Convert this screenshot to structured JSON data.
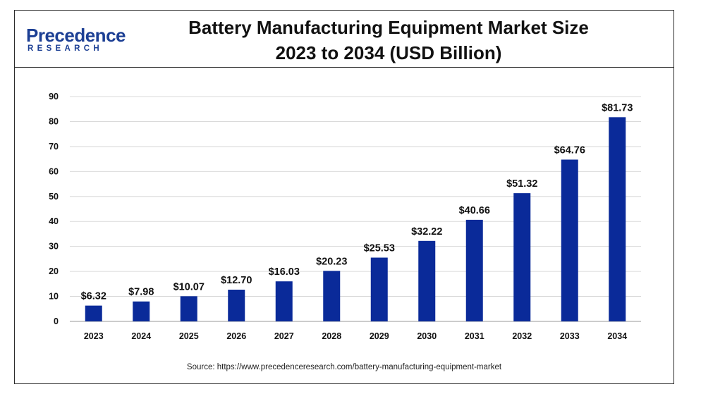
{
  "logo": {
    "main": "Precedence",
    "sub": "RESEARCH"
  },
  "title_line1": "Battery Manufacturing Equipment Market Size",
  "title_line2": "2023 to 2034 (USD Billion)",
  "source": "Source: https://www.precedenceresearch.com/battery-manufacturing-equipment-market",
  "colors": {
    "bar": "#0a2a99",
    "grid": "#d9d9d9",
    "frame": "#2b2b2b"
  },
  "chart_data": {
    "type": "bar",
    "title": "Battery Manufacturing Equipment Market Size 2023 to 2034 (USD Billion)",
    "xlabel": "",
    "ylabel": "",
    "categories": [
      "2023",
      "2024",
      "2025",
      "2026",
      "2027",
      "2028",
      "2029",
      "2030",
      "2031",
      "2032",
      "2033",
      "2034"
    ],
    "values": [
      6.32,
      7.98,
      10.07,
      12.7,
      16.03,
      20.23,
      25.53,
      32.22,
      40.66,
      51.32,
      64.76,
      81.73
    ],
    "data_labels": [
      "$6.32",
      "$7.98",
      "$10.07",
      "$12.70",
      "$16.03",
      "$20.23",
      "$25.53",
      "$32.22",
      "$40.66",
      "$51.32",
      "$64.76",
      "$81.73"
    ],
    "ylim": [
      0,
      90
    ],
    "yticks": [
      0,
      10,
      20,
      30,
      40,
      50,
      60,
      70,
      80,
      90
    ],
    "grid": true,
    "legend": "none"
  }
}
